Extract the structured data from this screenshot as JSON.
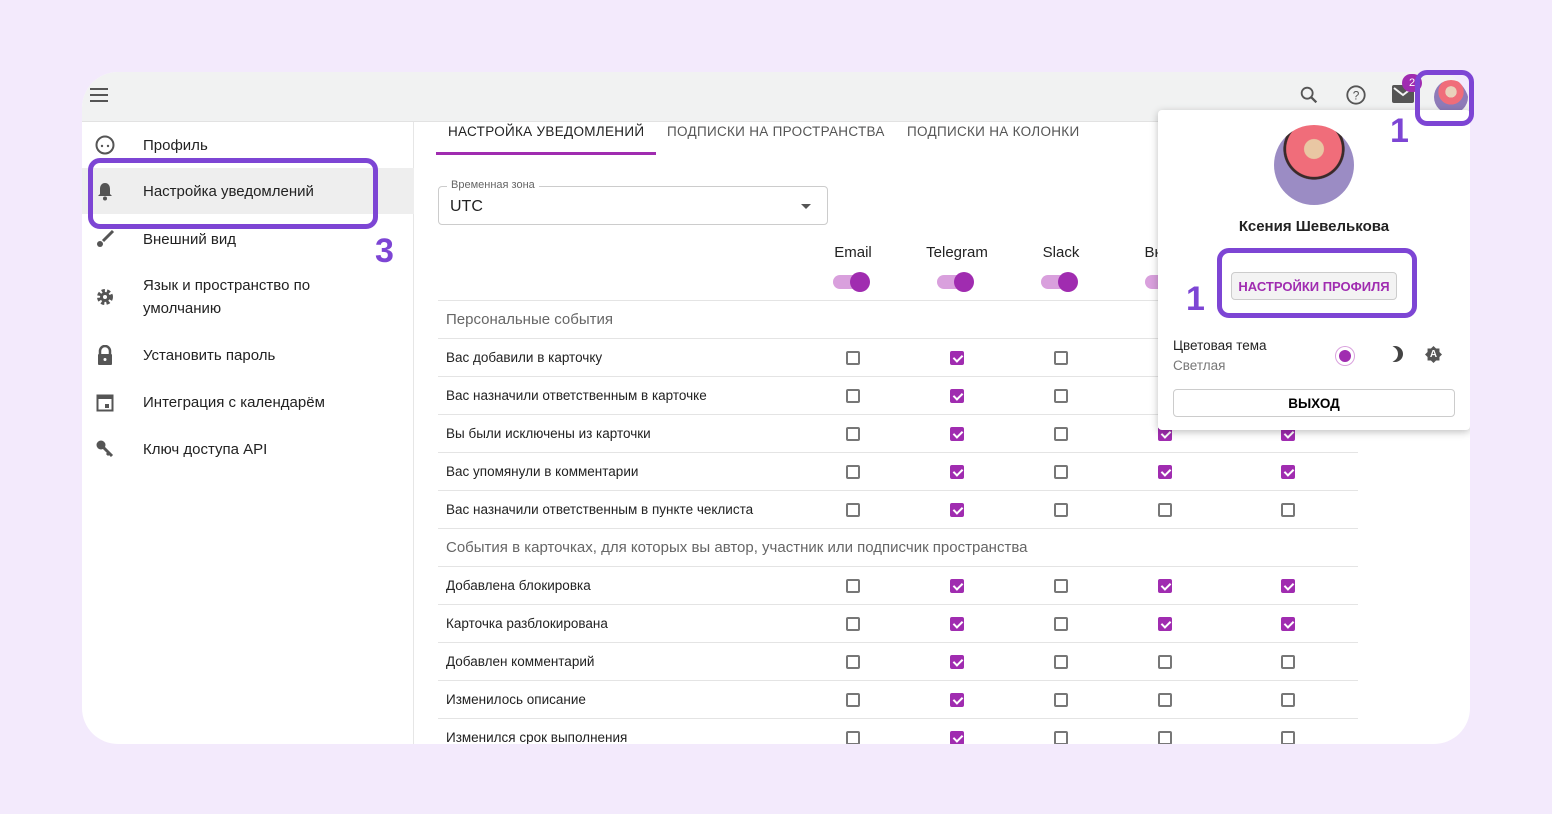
{
  "topbar": {
    "menu_icon": "hamburger-icon",
    "search_icon": "search-icon",
    "help_icon": "help-icon",
    "mail_icon": "mail-icon",
    "mail_badge": "2"
  },
  "sidebar": {
    "items": [
      {
        "label": "Профиль",
        "icon": "face-icon"
      },
      {
        "label": "Настройка уведомлений",
        "icon": "bell-icon",
        "active": true
      },
      {
        "label": "Внешний вид",
        "icon": "brush-icon"
      },
      {
        "label": "Язык и пространство по умолчанию",
        "icon": "gear-icon"
      },
      {
        "label": "Установить пароль",
        "icon": "lock-icon"
      },
      {
        "label": "Интеграция с календарём",
        "icon": "calendar-icon"
      },
      {
        "label": "Ключ доступа API",
        "icon": "key-icon"
      }
    ]
  },
  "tabs": [
    {
      "label": "НАСТРОЙКА УВЕДОМЛЕНИЙ",
      "active": true
    },
    {
      "label": "ПОДПИСКИ НА ПРОСТРАНСТВА"
    },
    {
      "label": "ПОДПИСКИ НА КОЛОНКИ"
    }
  ],
  "timezone": {
    "label": "Временная зона",
    "value": "UTC"
  },
  "columns": [
    {
      "label": "Email",
      "enabled": true
    },
    {
      "label": "Telegram",
      "enabled": true
    },
    {
      "label": "Slack",
      "enabled": true
    },
    {
      "label": "Внутр",
      "enabled": true
    },
    {
      "label": "",
      "enabled": true
    }
  ],
  "sections": [
    {
      "title": "Персональные события",
      "rows": [
        {
          "label": "Вас добавили в карточку",
          "checks": [
            false,
            true,
            false,
            false,
            false
          ]
        },
        {
          "label": "Вас назначили ответственным в карточке",
          "checks": [
            false,
            true,
            false,
            false,
            false
          ]
        },
        {
          "label": "Вы были исключены из карточки",
          "checks": [
            false,
            true,
            false,
            true,
            true
          ]
        },
        {
          "label": "Вас упомянули в комментарии",
          "checks": [
            false,
            true,
            false,
            true,
            true
          ]
        },
        {
          "label": "Вас назначили ответственным в пункте чеклиста",
          "checks": [
            false,
            true,
            false,
            false,
            false
          ]
        }
      ]
    },
    {
      "title": "События в карточках, для которых вы автор, участник или подписчик пространства",
      "rows": [
        {
          "label": "Добавлена блокировка",
          "checks": [
            false,
            true,
            false,
            true,
            true
          ]
        },
        {
          "label": "Карточка разблокирована",
          "checks": [
            false,
            true,
            false,
            true,
            true
          ]
        },
        {
          "label": "Добавлен комментарий",
          "checks": [
            false,
            true,
            false,
            false,
            false
          ]
        },
        {
          "label": "Изменилось описание",
          "checks": [
            false,
            true,
            false,
            false,
            false
          ]
        },
        {
          "label": "Изменился срок выполнения",
          "checks": [
            false,
            true,
            false,
            false,
            false
          ]
        }
      ]
    }
  ],
  "popup": {
    "name": "Ксения Шевелькова",
    "profile_button": "НАСТРОЙКИ ПРОФИЛЯ",
    "theme_label": "Цветовая тема",
    "theme_value": "Светлая",
    "theme_icons": [
      "sun-icon",
      "moon-icon",
      "auto-theme-icon"
    ],
    "logout": "ВЫХОД"
  },
  "annotations": {
    "a1": "1",
    "a2": "1",
    "a3": "3"
  },
  "colors": {
    "accent": "#a02cb0",
    "annotation": "#7d45d4",
    "background": "#f3eafc"
  }
}
